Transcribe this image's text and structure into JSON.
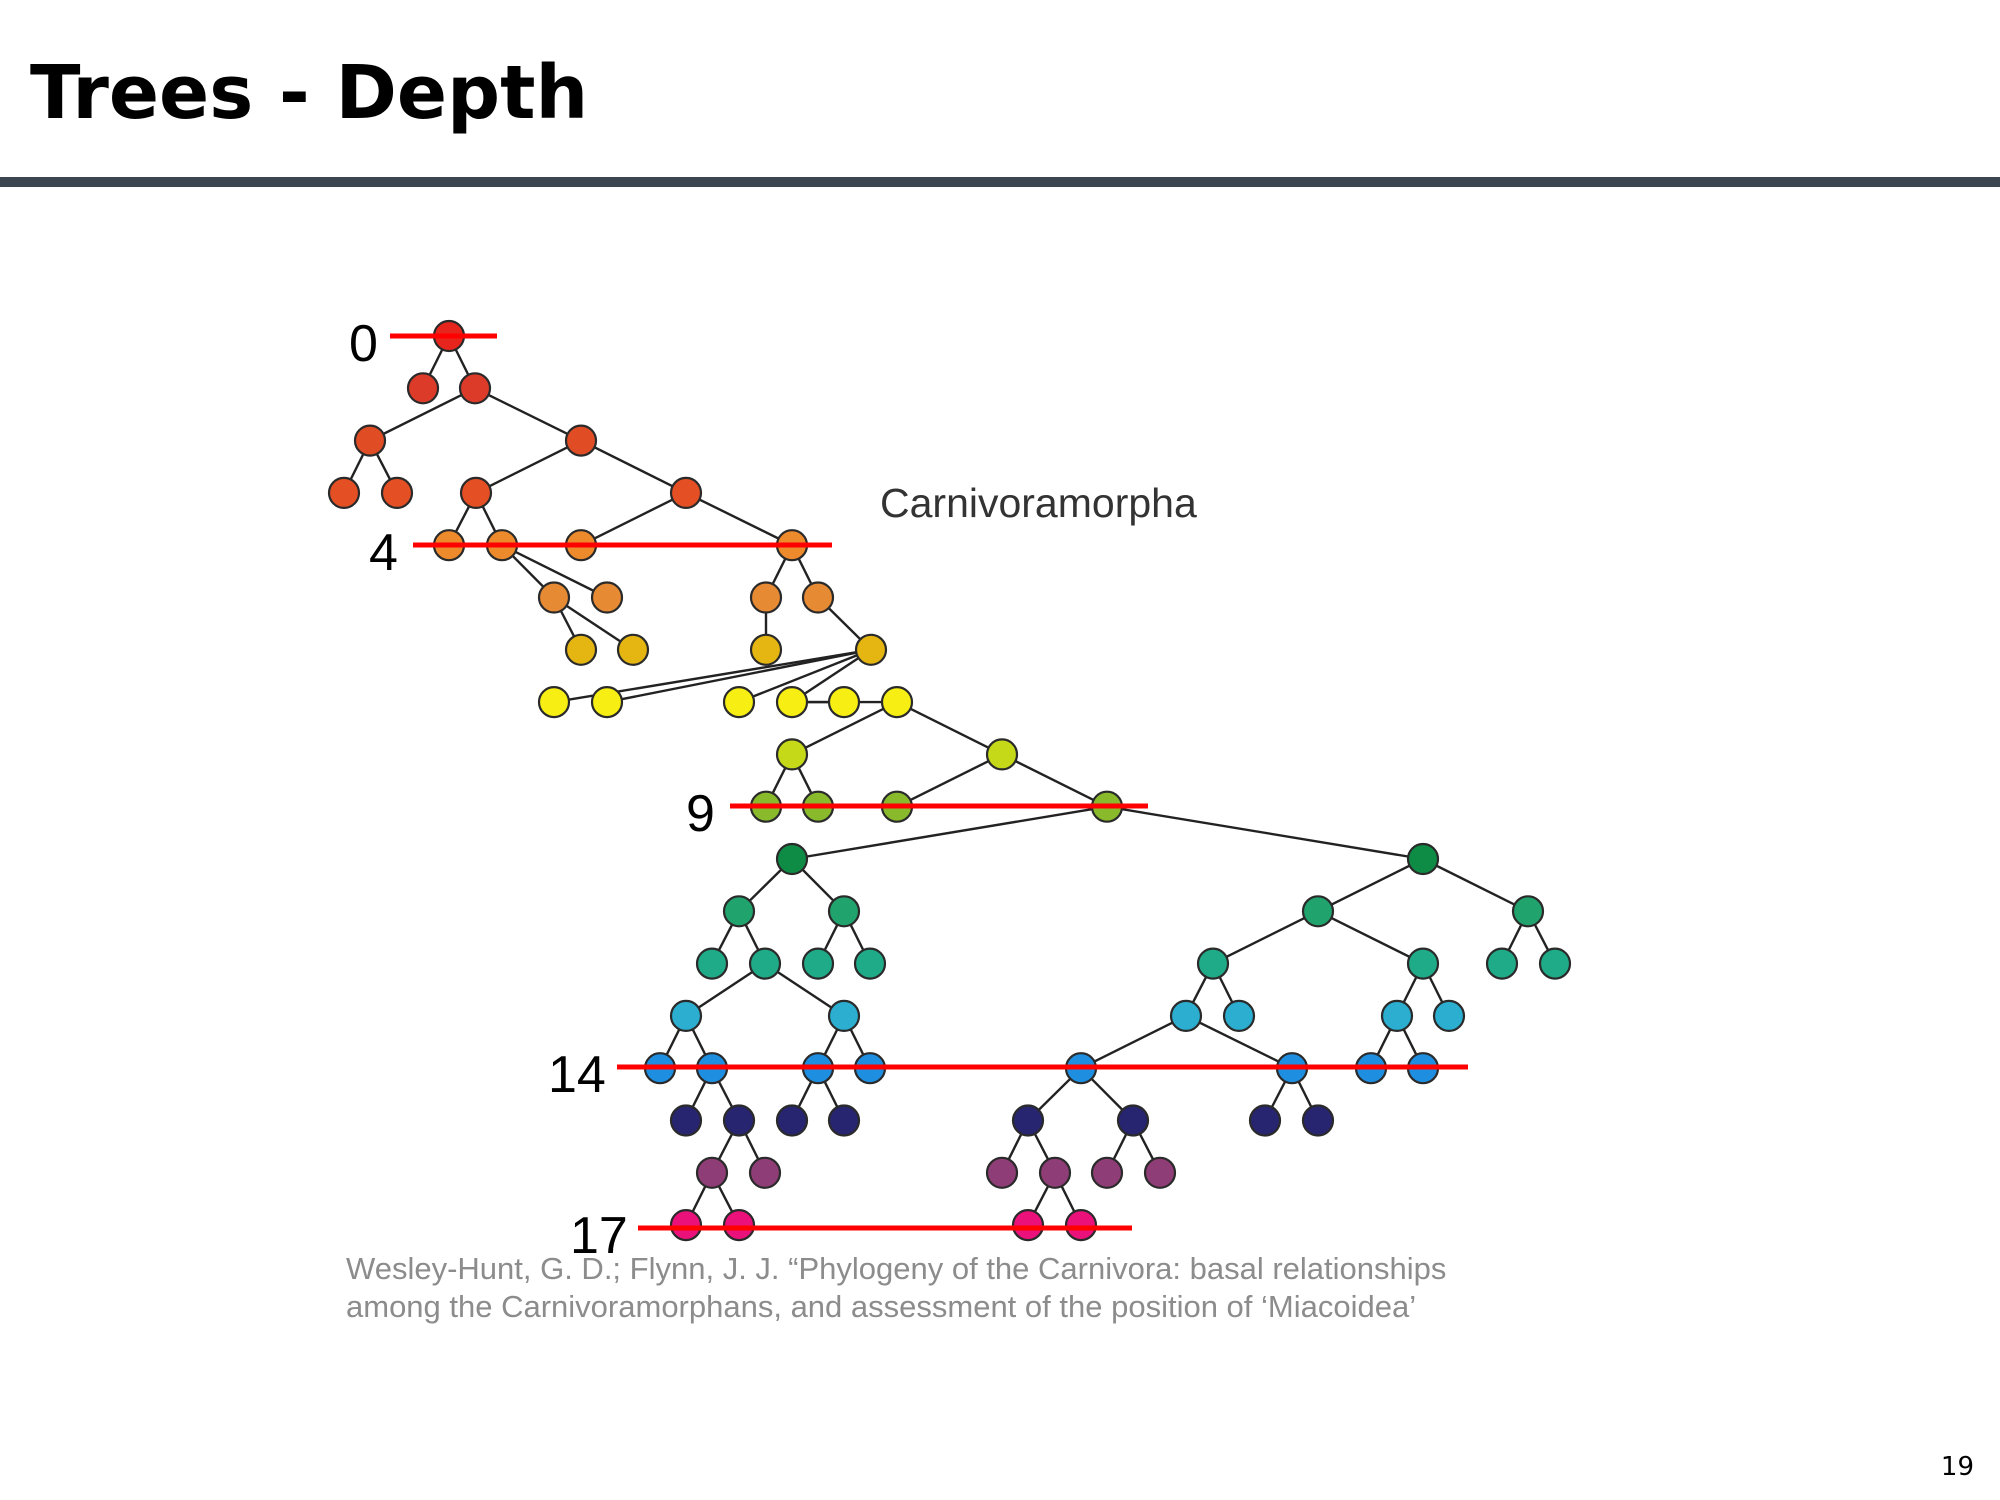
{
  "slide": {
    "title": "Trees - Depth",
    "page_number": "19"
  },
  "diagram": {
    "caption": "Carnivoramorpha",
    "depth_labels": [
      "0",
      "4",
      "9",
      "14",
      "17"
    ],
    "level_colors": [
      "#e8251c",
      "#dd3b2a",
      "#e04d25",
      "#e44f24",
      "#ec8a2c",
      "#e68a34",
      "#e5b512",
      "#f7ee13",
      "#c6d919",
      "#88ba2c",
      "#0e8c46",
      "#21a36d",
      "#1faa88",
      "#2baed0",
      "#1e8fe0",
      "#272470",
      "#8f3d76",
      "#ea127a"
    ]
  },
  "citation": {
    "line1": "Wesley-Hunt, G. D.; Flynn, J. J. “Phylogeny of the Carnivora: basal relationships",
    "line2": "among the Carnivoramorphans, and assessment of the position of ‘Miacoidea’"
  }
}
